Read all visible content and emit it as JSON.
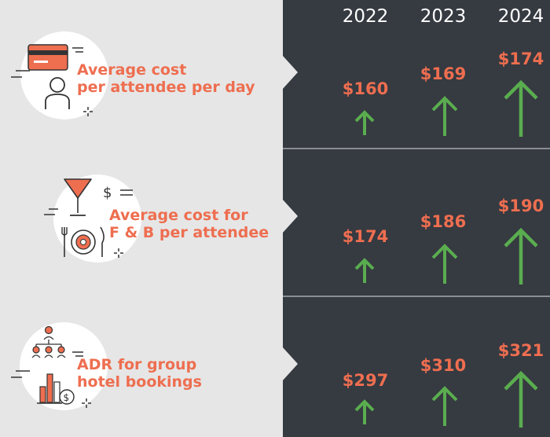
{
  "years": [
    "2022",
    "2023",
    "2024"
  ],
  "metrics": [
    {
      "label_line1": "Average cost",
      "label_line2": "per attendee per day",
      "icons": [
        "credit-card-icon",
        "person-icon"
      ],
      "values": [
        "$160",
        "$169",
        "$174"
      ]
    },
    {
      "label_line1": "Average cost for",
      "label_line2": "F & B per attendee",
      "icons": [
        "cocktail-glass-icon",
        "dollar-icon",
        "plate-icon"
      ],
      "values": [
        "$174",
        "$186",
        "$190"
      ]
    },
    {
      "label_line1": "ADR for group",
      "label_line2": "hotel bookings",
      "icons": [
        "org-chart-icon",
        "bar-chart-icon",
        "coin-icon"
      ],
      "values": [
        "$297",
        "$310",
        "$321"
      ]
    }
  ],
  "colors": {
    "accent": "#ee6e50",
    "arrow": "#5aad4f",
    "panel": "#363a41",
    "background": "#e6e6e6"
  }
}
